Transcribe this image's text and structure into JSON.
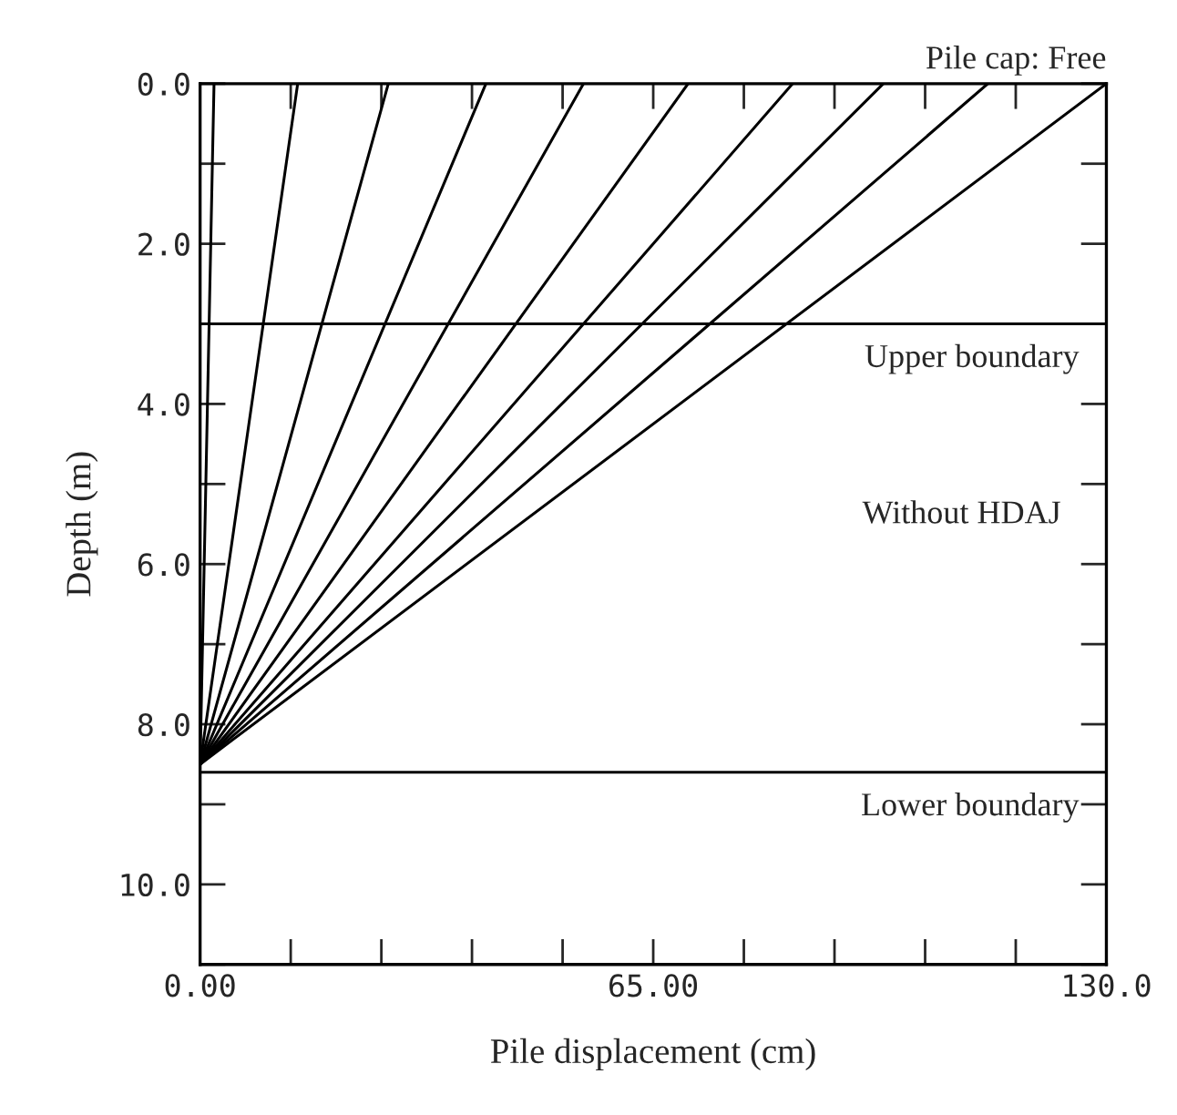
{
  "chart_data": {
    "type": "line",
    "title": "Pile cap: Free",
    "xlabel": "Pile displacement (cm)",
    "ylabel": "Depth (m)",
    "annotations": [
      "Without HDAJ"
    ],
    "series": [
      {
        "color": "#000000",
        "x": [
          2,
          0
        ],
        "values": [
          0,
          8.5
        ]
      },
      {
        "color": "#000000",
        "x": [
          14,
          0
        ],
        "values": [
          0,
          8.5
        ]
      },
      {
        "color": "#000000",
        "x": [
          27,
          0
        ],
        "values": [
          0,
          8.5
        ]
      },
      {
        "color": "#000000",
        "x": [
          41,
          0
        ],
        "values": [
          0,
          8.5
        ]
      },
      {
        "color": "#000000",
        "x": [
          55,
          0
        ],
        "values": [
          0,
          8.5
        ]
      },
      {
        "color": "#000000",
        "x": [
          70,
          0
        ],
        "values": [
          0,
          8.5
        ]
      },
      {
        "color": "#000000",
        "x": [
          85,
          0
        ],
        "values": [
          0,
          8.5
        ]
      },
      {
        "color": "#000000",
        "x": [
          98,
          0
        ],
        "values": [
          0,
          8.5
        ]
      },
      {
        "color": "#000000",
        "x": [
          113,
          0
        ],
        "values": [
          0,
          8.5
        ]
      },
      {
        "color": "#000000",
        "x": [
          130,
          0
        ],
        "values": [
          0,
          8.5
        ]
      }
    ],
    "ref_lines": [
      {
        "axis": "y",
        "value": 3.0,
        "label": "Upper boundary",
        "color": "#000000"
      },
      {
        "axis": "y",
        "value": 8.6,
        "label": "Lower boundary",
        "color": "#000000"
      }
    ],
    "xlim": [
      0,
      130
    ],
    "ylim": [
      11,
      0
    ],
    "xticks": [
      {
        "value": 0,
        "label": "0.00"
      },
      {
        "value": 13,
        "label": null
      },
      {
        "value": 26,
        "label": null
      },
      {
        "value": 39,
        "label": null
      },
      {
        "value": 52,
        "label": null
      },
      {
        "value": 65,
        "label": "65.00"
      },
      {
        "value": 78,
        "label": null
      },
      {
        "value": 91,
        "label": null
      },
      {
        "value": 104,
        "label": null
      },
      {
        "value": 117,
        "label": null
      },
      {
        "value": 130,
        "label": "130.0"
      }
    ],
    "yticks": [
      {
        "value": 0,
        "label": "0.0"
      },
      {
        "value": 1,
        "label": null
      },
      {
        "value": 2,
        "label": "2.0"
      },
      {
        "value": 3,
        "label": null
      },
      {
        "value": 4,
        "label": "4.0"
      },
      {
        "value": 5,
        "label": null
      },
      {
        "value": 6,
        "label": "6.0"
      },
      {
        "value": 7,
        "label": null
      },
      {
        "value": 8,
        "label": "8.0"
      },
      {
        "value": 9,
        "label": null
      },
      {
        "value": 10,
        "label": "10.0"
      },
      {
        "value": 11,
        "label": null
      }
    ],
    "grid": false,
    "legend": false,
    "marker": "none",
    "line_style": "solid"
  }
}
